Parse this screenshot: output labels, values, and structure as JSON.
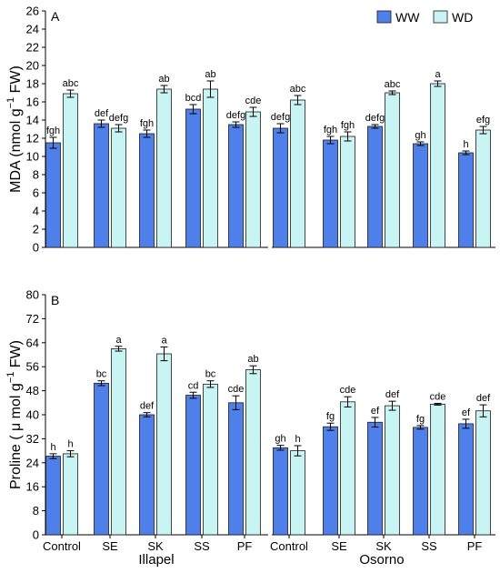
{
  "colors": {
    "WW": "#4f7fe8",
    "WD": "#c8f4f4",
    "stroke": "#1a1a1a"
  },
  "legend": [
    {
      "key": "WW",
      "label": "WW"
    },
    {
      "key": "WD",
      "label": "WD"
    }
  ],
  "groups": [
    {
      "name": "Illapel"
    },
    {
      "name": "Osorno"
    }
  ],
  "categories": [
    "Control",
    "SE",
    "SK",
    "SS",
    "PF"
  ],
  "chart_data": [
    {
      "type": "bar",
      "panel_label": "A",
      "title": "",
      "xlabel": "",
      "ylabel": "MDA (nmol g⁻¹ FW)",
      "ylabel_parts": {
        "main": "MDA (nmol  g",
        "sup": "−1",
        "tail": " FW)"
      },
      "ylim": [
        0,
        26
      ],
      "yticks": [
        0,
        2,
        4,
        6,
        8,
        10,
        12,
        14,
        16,
        18,
        20,
        22,
        24,
        26
      ],
      "grid": false,
      "legend_position": "top-right",
      "groups": [
        "Illapel",
        "Osorno"
      ],
      "categories": [
        "Control",
        "SE",
        "SK",
        "SS",
        "PF"
      ],
      "series": [
        {
          "name": "WW",
          "values": [
            [
              11.5,
              13.6,
              12.5,
              15.2,
              13.5
            ],
            [
              13.1,
              11.8,
              13.3,
              11.4,
              10.4
            ]
          ],
          "errors": [
            [
              0.6,
              0.4,
              0.4,
              0.5,
              0.3
            ],
            [
              0.5,
              0.4,
              0.2,
              0.2,
              0.2
            ]
          ],
          "labels": [
            [
              "fgh",
              "def",
              "fgh",
              "bcd",
              "defg"
            ],
            [
              "defg",
              "fgh",
              "defg",
              "gh",
              "h"
            ]
          ]
        },
        {
          "name": "WD",
          "values": [
            [
              16.9,
              13.1,
              17.4,
              17.4,
              14.9
            ],
            [
              16.2,
              12.2,
              17.0,
              18.0,
              12.9
            ]
          ],
          "errors": [
            [
              0.4,
              0.4,
              0.4,
              0.9,
              0.5
            ],
            [
              0.5,
              0.5,
              0.2,
              0.3,
              0.4
            ]
          ],
          "labels": [
            [
              "abc",
              "defg",
              "ab",
              "ab",
              "cde"
            ],
            [
              "abc",
              "fgh",
              "abc",
              "a",
              "efg"
            ]
          ]
        }
      ]
    },
    {
      "type": "bar",
      "panel_label": "B",
      "title": "",
      "xlabel": "",
      "ylabel": "Proline ( μ mol g⁻¹ FW)",
      "ylabel_parts": {
        "main": "Proline ( μ mol g",
        "sup": "−1",
        "tail": " FW)"
      },
      "ylim": [
        0,
        80
      ],
      "yticks": [
        0,
        8,
        16,
        24,
        32,
        40,
        48,
        56,
        64,
        72,
        80
      ],
      "grid": false,
      "legend_position": "",
      "groups": [
        "Illapel",
        "Osorno"
      ],
      "categories": [
        "Control",
        "SE",
        "SK",
        "SS",
        "PF"
      ],
      "series": [
        {
          "name": "WW",
          "values": [
            [
              26.2,
              50.5,
              40.0,
              46.5,
              44.0
            ],
            [
              29.0,
              36.0,
              37.5,
              35.8,
              37.0
            ]
          ],
          "errors": [
            [
              0.8,
              0.8,
              0.7,
              1.0,
              2.3
            ],
            [
              0.8,
              1.2,
              1.6,
              0.6,
              1.5
            ]
          ],
          "labels": [
            [
              "h",
              "bc",
              "def",
              "cd",
              "cde"
            ],
            [
              "gh",
              "fg",
              "ef",
              "fg",
              "ef"
            ]
          ]
        },
        {
          "name": "WD",
          "values": [
            [
              27.0,
              62.0,
              60.3,
              50.2,
              55.0
            ],
            [
              28.0,
              44.3,
              43.0,
              43.5,
              41.3
            ]
          ],
          "errors": [
            [
              1.0,
              0.8,
              2.3,
              1.1,
              1.3
            ],
            [
              1.7,
              1.7,
              1.5,
              0.3,
              2.0
            ]
          ],
          "labels": [
            [
              "h",
              "a",
              "a",
              "bc",
              "ab"
            ],
            [
              "h",
              "cde",
              "def",
              "cde",
              "def"
            ]
          ]
        }
      ]
    }
  ]
}
